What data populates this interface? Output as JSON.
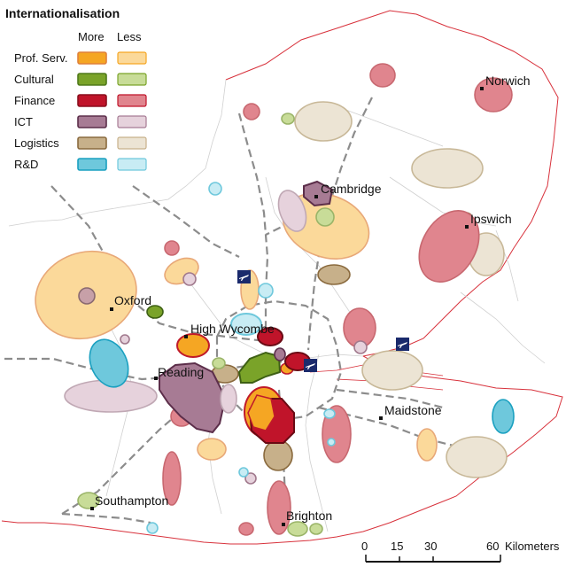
{
  "legend": {
    "title": "Internationalisation",
    "col_more": "More",
    "col_less": "Less",
    "rows": [
      {
        "label": "Prof. Serv.",
        "more": "#f5a623",
        "less": "#fbd99a",
        "edge": "#e0803a"
      },
      {
        "label": "Cultural",
        "more": "#7aa329",
        "less": "#c8dc98",
        "edge": "#4f7a1a"
      },
      {
        "label": "Finance",
        "more": "#c0142a",
        "less": "#e0858e",
        "edge": "#8a0f1e"
      },
      {
        "label": "ICT",
        "more": "#a77b94",
        "less": "#e6d2dc",
        "edge": "#5c2e4a"
      },
      {
        "label": "Logistics",
        "more": "#c7b08a",
        "less": "#ece4d4",
        "edge": "#8a6a3e"
      },
      {
        "label": "R&D",
        "more": "#6ec8dc",
        "less": "#c8ecf4",
        "edge": "#1aa0c0"
      }
    ]
  },
  "towns": [
    {
      "id": "norwich",
      "name": "Norwich"
    },
    {
      "id": "cambridge",
      "name": "Cambridge"
    },
    {
      "id": "ipswich",
      "name": "Ipswich"
    },
    {
      "id": "oxford",
      "name": "Oxford"
    },
    {
      "id": "high-wycombe",
      "name": "High Wycombe"
    },
    {
      "id": "reading",
      "name": "Reading"
    },
    {
      "id": "maidstone",
      "name": "Maidstone"
    },
    {
      "id": "southampton",
      "name": "Southampton"
    },
    {
      "id": "brighton",
      "name": "Brighton"
    }
  ],
  "scale": {
    "ticks": [
      "0",
      "15",
      "30",
      "60"
    ],
    "unit": "Kilometers"
  },
  "icons": [
    "airport-icon"
  ]
}
